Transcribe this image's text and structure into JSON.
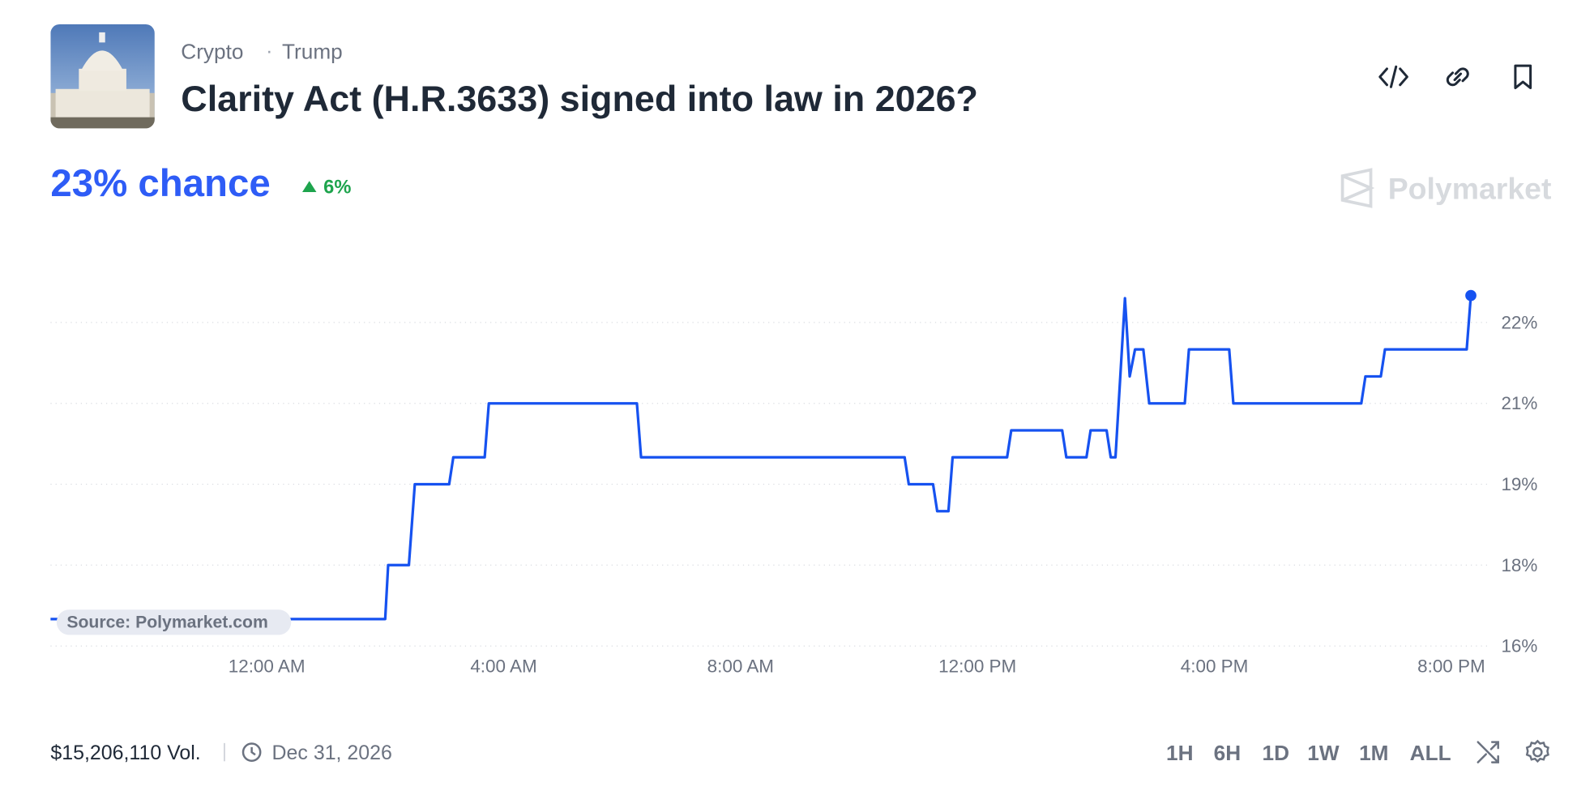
{
  "market": {
    "tags": [
      "Crypto",
      "Trump"
    ],
    "title": "Clarity Act (H.R.3633) signed into law in 2026?",
    "chance": "23% chance",
    "change": "6%"
  },
  "chart_data": {
    "type": "line",
    "x": [
      -3.65,
      2.0,
      2.05,
      2.4,
      2.5,
      3.08,
      3.15,
      3.68,
      3.75,
      6.25,
      6.32,
      10.77,
      10.84,
      11.25,
      11.32,
      11.51,
      11.58,
      12.5,
      12.57,
      13.43,
      13.5,
      13.84,
      13.91,
      14.18,
      14.25,
      14.33,
      14.49,
      14.57,
      14.66,
      14.8,
      14.9,
      15.5,
      15.57,
      16.25,
      16.32,
      18.48,
      18.55,
      18.81,
      18.88,
      20.26,
      20.33
    ],
    "series": [
      {
        "name": "Yes",
        "color": "#1652f0",
        "values": [
          16.5,
          16.5,
          17.5,
          17.5,
          19,
          19,
          19.5,
          19.5,
          20.5,
          20.5,
          19.5,
          19.5,
          19,
          19,
          18.5,
          18.5,
          19.5,
          19.5,
          20,
          20,
          19.5,
          19.5,
          20,
          20,
          19.5,
          19.5,
          22.45,
          21,
          21.5,
          21.5,
          20.5,
          20.5,
          21.5,
          21.5,
          20.5,
          20.5,
          21,
          21,
          21.5,
          21.5,
          22.5
        ]
      }
    ],
    "xlim": [
      -3.65,
      20.33
    ],
    "xticks": [
      {
        "value": 0,
        "label": "12:00 AM"
      },
      {
        "value": 4,
        "label": "4:00 AM"
      },
      {
        "value": 8,
        "label": "8:00 AM"
      },
      {
        "value": 12,
        "label": "12:00 PM"
      },
      {
        "value": 16,
        "label": "4:00 PM"
      },
      {
        "value": 20,
        "label": "8:00 PM"
      }
    ],
    "ylim": [
      16,
      22.8
    ],
    "yticks": [
      {
        "value": 16,
        "label": "16%"
      },
      {
        "value": 17.5,
        "label": "18%"
      },
      {
        "value": 19,
        "label": "19%"
      },
      {
        "value": 20.5,
        "label": "21%"
      },
      {
        "value": 22,
        "label": "22%"
      }
    ],
    "grid": true,
    "source": "Source: Polymarket.com"
  },
  "brand": "Polymarket",
  "footer": {
    "volume": "$15,206,110 Vol.",
    "end_date": "Dec 31, 2026",
    "ranges": [
      "1H",
      "6H",
      "1D",
      "1W",
      "1M",
      "ALL"
    ],
    "active_range": 2
  }
}
